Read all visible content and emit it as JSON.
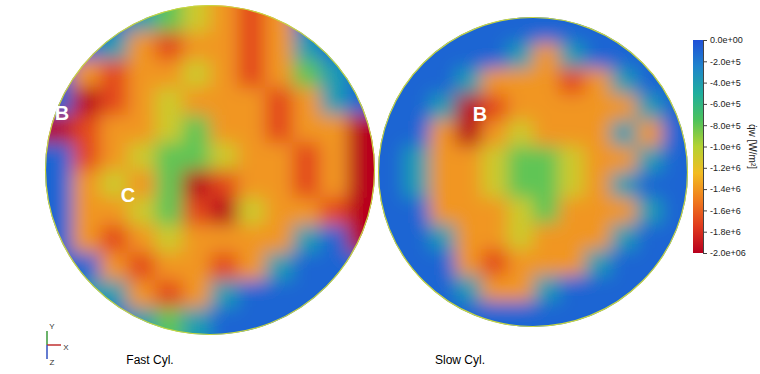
{
  "chart_data": [
    {
      "type": "heatmap",
      "title": "Fast Cyl.",
      "annotations": [
        "B",
        "C"
      ],
      "triad": [
        "Y",
        "X",
        "Z"
      ],
      "cells": [
        [
          -100000,
          -100000,
          -100000,
          -400000,
          -800000,
          -1100000,
          -1400000,
          -1700000,
          -1400000,
          -100000,
          -100000,
          -100000
        ],
        [
          -100000,
          -100000,
          -400000,
          -1400000,
          -1700000,
          -1400000,
          -1400000,
          -1700000,
          -1400000,
          -400000,
          -100000,
          -100000
        ],
        [
          -100000,
          -1400000,
          -1700000,
          -1400000,
          -1400000,
          -1100000,
          -1400000,
          -1700000,
          -1400000,
          -800000,
          -400000,
          -100000
        ],
        [
          -100000,
          -2000000,
          -1700000,
          -1400000,
          -1100000,
          -1400000,
          -1400000,
          -1400000,
          -1700000,
          -1400000,
          -400000,
          -100000
        ],
        [
          -2000000,
          -1700000,
          -1400000,
          -1400000,
          -1100000,
          -800000,
          -1400000,
          -1400000,
          -1700000,
          -1400000,
          -1400000,
          -2000000
        ],
        [
          -100000,
          -1700000,
          -1400000,
          -1100000,
          -800000,
          -800000,
          -1100000,
          -1400000,
          -1400000,
          -1700000,
          -1400000,
          -2000000
        ],
        [
          -100000,
          -1400000,
          -1100000,
          -1400000,
          -800000,
          -2000000,
          -1700000,
          -1400000,
          -1400000,
          -1700000,
          -1400000,
          -2000000
        ],
        [
          -100000,
          -1400000,
          -1400000,
          -1100000,
          -800000,
          -1700000,
          -2000000,
          -1100000,
          -1400000,
          -1400000,
          -1700000,
          -2000000
        ],
        [
          -100000,
          -1400000,
          -1700000,
          -1400000,
          -1100000,
          -1400000,
          -1400000,
          -1400000,
          -1400000,
          -400000,
          -100000,
          -2000000
        ],
        [
          -100000,
          -100000,
          -1400000,
          -1700000,
          -1400000,
          -1400000,
          -1700000,
          -1400000,
          -400000,
          -100000,
          -100000,
          -100000
        ],
        [
          -100000,
          -400000,
          -400000,
          -1400000,
          -1700000,
          -1400000,
          -400000,
          -100000,
          -100000,
          -100000,
          -100000,
          -100000
        ],
        [
          -100000,
          -100000,
          -100000,
          -400000,
          -800000,
          -400000,
          -100000,
          -100000,
          -100000,
          -100000,
          -100000,
          -100000
        ]
      ]
    },
    {
      "type": "heatmap",
      "title": "Slow Cyl.",
      "annotations": [
        "B"
      ],
      "cells": [
        [
          -100000,
          -100000,
          -100000,
          -100000,
          -100000,
          -100000,
          -100000,
          -100000,
          -100000,
          -100000,
          -100000,
          -100000
        ],
        [
          -100000,
          -100000,
          -100000,
          -100000,
          -100000,
          -400000,
          -1400000,
          -400000,
          -100000,
          -100000,
          -100000,
          -100000
        ],
        [
          -100000,
          -100000,
          -100000,
          -400000,
          -1400000,
          -1400000,
          -1400000,
          -1700000,
          -1400000,
          -400000,
          -100000,
          -100000
        ],
        [
          -100000,
          -100000,
          -400000,
          -2000000,
          -1700000,
          -1400000,
          -1400000,
          -1400000,
          -1400000,
          -1400000,
          -400000,
          -100000
        ],
        [
          -100000,
          -100000,
          -1400000,
          -2000000,
          -1400000,
          -1100000,
          -1400000,
          -1400000,
          -1400000,
          -400000,
          -1400000,
          -100000
        ],
        [
          -100000,
          -400000,
          -1400000,
          -1400000,
          -1100000,
          -800000,
          -800000,
          -1100000,
          -1400000,
          -1400000,
          -400000,
          -100000
        ],
        [
          -100000,
          -400000,
          -1400000,
          -1400000,
          -1100000,
          -800000,
          -800000,
          -1100000,
          -1400000,
          -400000,
          -100000,
          -100000
        ],
        [
          -100000,
          -100000,
          -1400000,
          -1400000,
          -1400000,
          -1100000,
          -800000,
          -1400000,
          -1400000,
          -1400000,
          -400000,
          -100000
        ],
        [
          -100000,
          -100000,
          -400000,
          -1400000,
          -1400000,
          -1100000,
          -1400000,
          -1400000,
          -1400000,
          -400000,
          -100000,
          -100000
        ],
        [
          -100000,
          -100000,
          -100000,
          -1400000,
          -1700000,
          -1400000,
          -1400000,
          -1400000,
          -400000,
          -100000,
          -100000,
          -100000
        ],
        [
          -100000,
          -100000,
          -100000,
          -400000,
          -1400000,
          -1400000,
          -400000,
          -100000,
          -100000,
          -100000,
          -100000,
          -100000
        ],
        [
          -100000,
          -100000,
          -100000,
          -100000,
          -100000,
          -100000,
          -100000,
          -100000,
          -100000,
          -100000,
          -100000,
          -100000
        ]
      ]
    }
  ],
  "colorbar": {
    "title": "q̇w [W/m²]",
    "range": [
      -2000000,
      0
    ],
    "colors": [
      "#b8001e",
      "#e03a1e",
      "#f07c1e",
      "#f2bc22",
      "#b4d232",
      "#4cc25c",
      "#1fae9e",
      "#1f84cc",
      "#1f50d8"
    ],
    "ticks": [
      {
        "value": 0,
        "label": "0.0e+00"
      },
      {
        "value": -200000,
        "label": "-2.0e+5"
      },
      {
        "value": -400000,
        "label": "-4.0e+5"
      },
      {
        "value": -600000,
        "label": "-6.0e+5"
      },
      {
        "value": -800000,
        "label": "-8.0e+5"
      },
      {
        "value": -1000000,
        "label": "-1.0e+6"
      },
      {
        "value": -1200000,
        "label": "-1.2e+6"
      },
      {
        "value": -1400000,
        "label": "-1.4e+6"
      },
      {
        "value": -1600000,
        "label": "-1.6e+6"
      },
      {
        "value": -1800000,
        "label": "-1.8e+6"
      },
      {
        "value": -2000000,
        "label": "-2.0e+06"
      }
    ]
  }
}
